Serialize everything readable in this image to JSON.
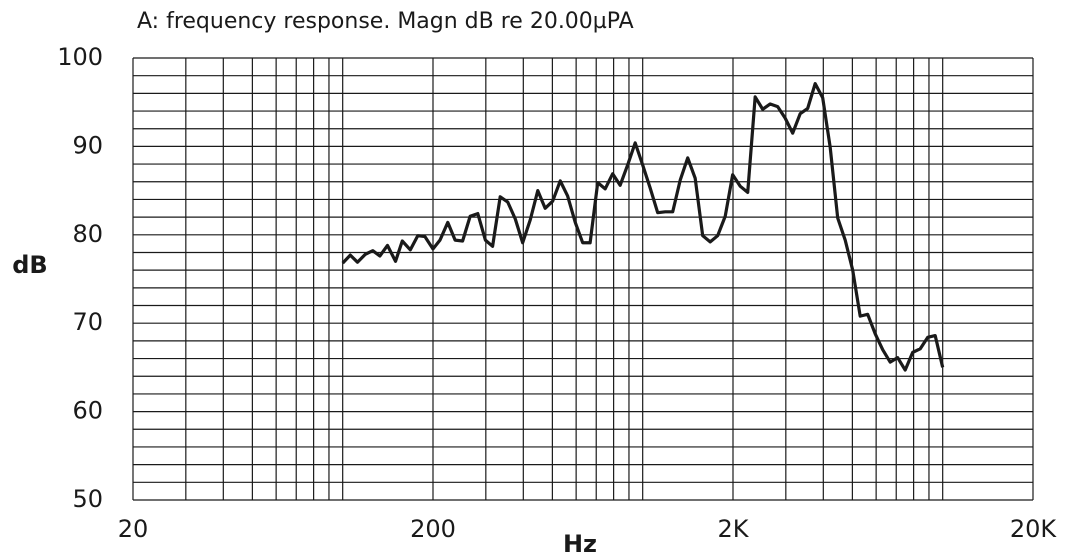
{
  "chart_data": {
    "type": "line",
    "title": "A: frequency response. Magn dB re 20.00µPA",
    "xlabel": "Hz",
    "ylabel": "dB",
    "xscale": "log",
    "xlim": [
      20,
      20000
    ],
    "xticks": [
      20,
      200,
      {
        "value": 2000,
        "label": "2K"
      },
      {
        "value": 20000,
        "label": "20K"
      }
    ],
    "xminor": [
      30,
      40,
      50,
      60,
      70,
      80,
      90,
      100,
      300,
      400,
      500,
      600,
      700,
      800,
      900,
      1000,
      3000,
      4000,
      5000,
      6000,
      7000,
      8000,
      9000,
      10000
    ],
    "ylim": [
      50,
      100
    ],
    "yticks": [
      50,
      60,
      70,
      80,
      90,
      100
    ],
    "yminor": [
      52,
      54,
      56,
      58,
      62,
      64,
      66,
      68,
      72,
      74,
      76,
      78,
      82,
      84,
      86,
      88,
      92,
      94,
      96,
      98
    ],
    "grid": true,
    "x": [
      100,
      106,
      112,
      119,
      126,
      133,
      141,
      150,
      158,
      168,
      178,
      188,
      200,
      211,
      224,
      237,
      251,
      266,
      282,
      299,
      316,
      335,
      355,
      376,
      398,
      422,
      447,
      473,
      501,
      531,
      562,
      596,
      631,
      668,
      708,
      750,
      794,
      841,
      891,
      944,
      1000,
      1059,
      1122,
      1189,
      1259,
      1334,
      1413,
      1496,
      1585,
      1679,
      1778,
      1884,
      1995,
      2113,
      2239,
      2371,
      2512,
      2661,
      2818,
      2985,
      3162,
      3350,
      3548,
      3758,
      3981,
      4217,
      4467,
      4732,
      5012,
      5309,
      5623,
      5957,
      6310,
      6683,
      7079,
      7499,
      7943,
      8414,
      8913,
      9441,
      10000
    ],
    "series": [
      {
        "name": "A",
        "color": "#1a1a1a",
        "values": [
          76.8,
          77.7,
          76.9,
          77.8,
          78.2,
          77.6,
          78.8,
          77.0,
          79.3,
          78.3,
          79.9,
          79.8,
          78.4,
          79.4,
          81.4,
          79.4,
          79.3,
          82.1,
          82.4,
          79.4,
          78.7,
          84.3,
          83.7,
          81.8,
          79.1,
          81.7,
          85.0,
          83.0,
          83.8,
          86.1,
          84.4,
          81.4,
          79.1,
          79.1,
          85.9,
          85.2,
          86.9,
          85.6,
          87.9,
          90.4,
          87.9,
          85.3,
          82.5,
          82.6,
          82.6,
          86.2,
          88.7,
          86.4,
          79.9,
          79.2,
          79.9,
          82.1,
          86.8,
          85.5,
          84.8,
          95.6,
          94.2,
          94.8,
          94.5,
          93.2,
          91.5,
          93.7,
          94.3,
          97.1,
          95.5,
          89.9,
          81.9,
          79.4,
          76.0,
          70.8,
          71.0,
          68.8,
          67.0,
          65.6,
          66.1,
          64.7,
          66.7,
          67.1,
          68.4,
          68.6,
          65.0
        ]
      }
    ]
  }
}
